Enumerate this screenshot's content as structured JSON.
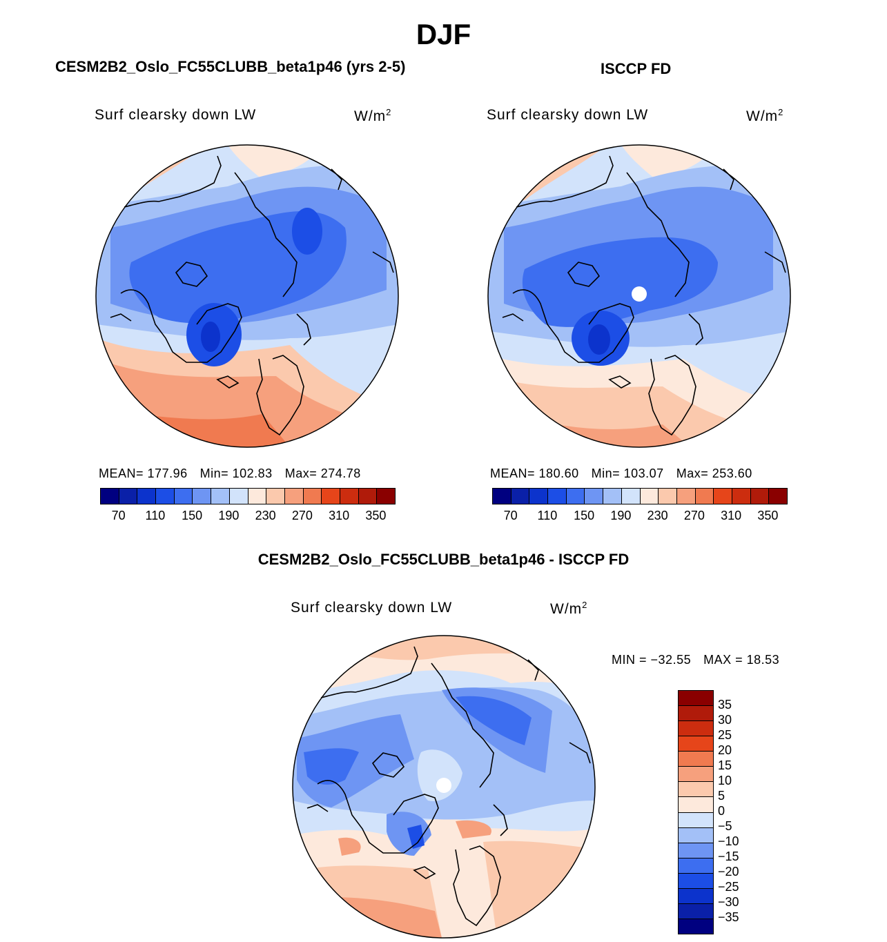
{
  "page": {
    "season": "DJF",
    "model_title": "CESM2B2_Oslo_FC55CLUBB_beta1p46 (yrs 2-5)",
    "obs_title": "ISCCP FD",
    "diff_title": "CESM2B2_Oslo_FC55CLUBB_beta1p46 - ISCCP FD"
  },
  "panels": {
    "model": {
      "variable": "Surf clearsky down LW",
      "units_base": "W/m",
      "units_exp": "2",
      "mean_label": "MEAN=",
      "mean": "177.96",
      "min_label": "Min=",
      "min": "102.83",
      "max_label": "Max=",
      "max": "274.78"
    },
    "obs": {
      "variable": "Surf clearsky down LW",
      "units_base": "W/m",
      "units_exp": "2",
      "mean_label": "MEAN=",
      "mean": "180.60",
      "min_label": "Min=",
      "min": "103.07",
      "max_label": "Max=",
      "max": "253.60"
    },
    "diff": {
      "variable": "Surf clearsky down LW",
      "units_base": "W/m",
      "units_exp": "2",
      "min_label": "MIN =",
      "min": "−32.55",
      "max_label": "MAX =",
      "max": "18.53"
    }
  },
  "colorbars": {
    "abs": {
      "colors": [
        "#000080",
        "#0a20a8",
        "#0c33cc",
        "#1c4ee6",
        "#3d6ef0",
        "#6e95f3",
        "#a3c0f7",
        "#d2e3fb",
        "#fde9dc",
        "#fbc9ad",
        "#f6a07d",
        "#f07a50",
        "#e6451a",
        "#cc2d0f",
        "#b01b0a",
        "#8a0000"
      ],
      "ticks": [
        "70",
        "110",
        "150",
        "190",
        "230",
        "270",
        "310",
        "350"
      ]
    },
    "diff": {
      "colors": [
        "#000080",
        "#0a20a8",
        "#0c33cc",
        "#1c4ee6",
        "#3d6ef0",
        "#6e95f3",
        "#a3c0f7",
        "#d2e3fb",
        "#fde9dc",
        "#fbc9ad",
        "#f6a07d",
        "#f07a50",
        "#e6451a",
        "#cc2d0f",
        "#b01b0a",
        "#8a0000"
      ],
      "ticks": [
        "35",
        "30",
        "25",
        "20",
        "15",
        "10",
        "5",
        "0",
        "−5",
        "−10",
        "−15",
        "−20",
        "−25",
        "−30",
        "−35"
      ]
    }
  }
}
